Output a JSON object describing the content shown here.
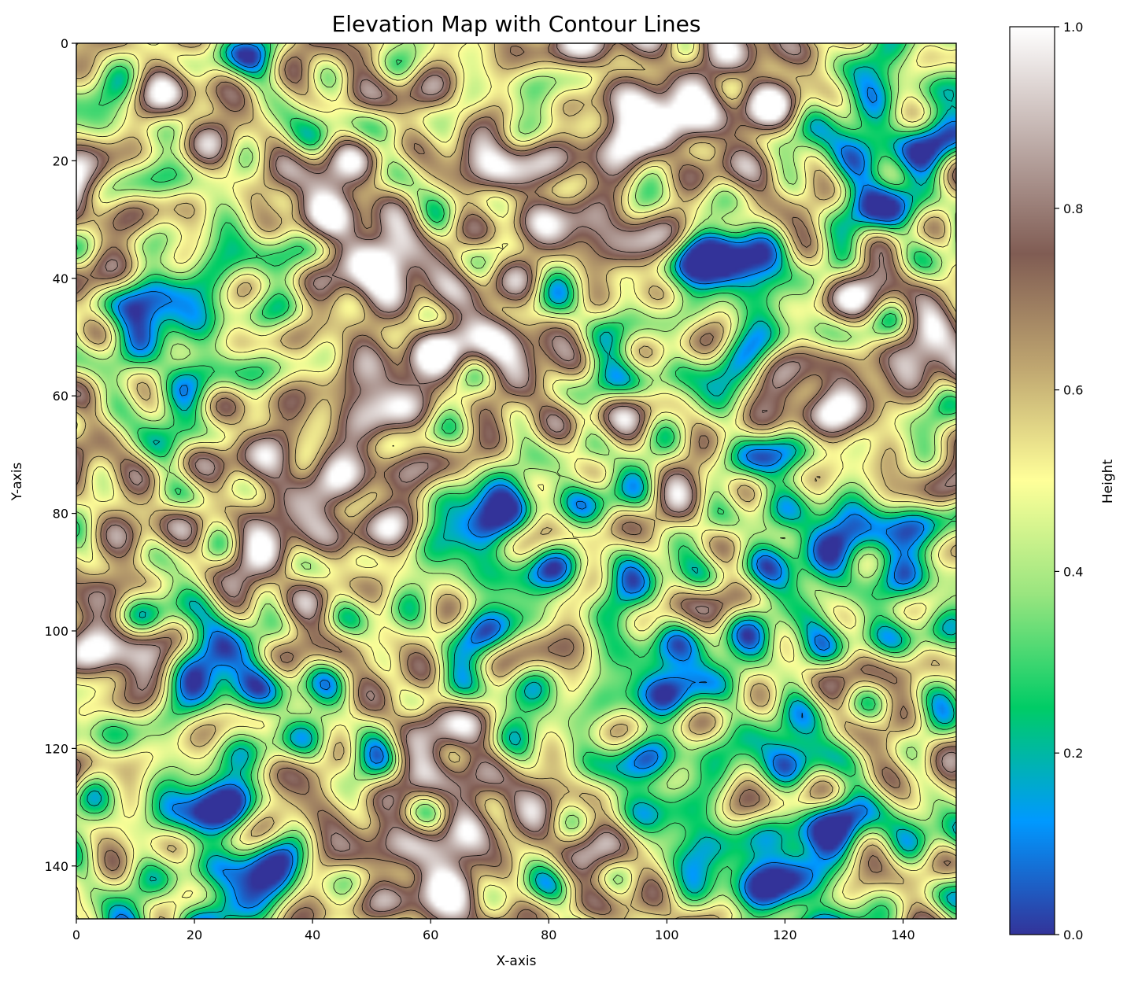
{
  "chart_data": {
    "type": "heatmap",
    "title": "Elevation Map with Contour Lines",
    "xlabel": "X-axis",
    "ylabel": "Y-axis",
    "grid": false,
    "xlim": [
      0,
      149
    ],
    "ylim": [
      149,
      0
    ],
    "x_ticks": [
      0,
      20,
      40,
      60,
      80,
      100,
      120,
      140
    ],
    "y_ticks": [
      0,
      20,
      40,
      60,
      80,
      100,
      120,
      140
    ],
    "colorbar": {
      "label": "Height",
      "range": [
        0,
        1
      ],
      "ticks": [
        0.0,
        0.2,
        0.4,
        0.6,
        0.8,
        1.0
      ],
      "tick_labels": [
        "0.0",
        "0.2",
        "0.4",
        "0.6",
        "0.8",
        "1.0"
      ],
      "colormap": "terrain",
      "stops": [
        "#333399",
        "#0099ff",
        "#00cc66",
        "#99e57f",
        "#ffff99",
        "#bfa670",
        "#805c53",
        "#bfaeaa",
        "#ffffff"
      ]
    },
    "contour_levels": [
      0.1,
      0.2,
      0.3,
      0.4,
      0.5,
      0.6,
      0.7,
      0.8
    ],
    "contour_color": "#000000",
    "grid_size": [
      150,
      150
    ],
    "features": [
      {
        "type": "low",
        "x": 18,
        "y": 44,
        "height": 0.14
      },
      {
        "type": "low",
        "x": 110,
        "y": 40,
        "height": 0.16
      },
      {
        "type": "low",
        "x": 141,
        "y": 16,
        "height": 0.14
      },
      {
        "type": "low",
        "x": 70,
        "y": 84,
        "height": 0.17
      },
      {
        "type": "low",
        "x": 130,
        "y": 86,
        "height": 0.15
      },
      {
        "type": "low",
        "x": 122,
        "y": 140,
        "height": 0.12
      },
      {
        "type": "low",
        "x": 24,
        "y": 140,
        "height": 0.22
      },
      {
        "type": "low",
        "x": 24,
        "y": 108,
        "height": 0.24
      },
      {
        "type": "low",
        "x": 100,
        "y": 112,
        "height": 0.22
      },
      {
        "type": "high",
        "x": 108,
        "y": 8,
        "height": 0.9
      },
      {
        "type": "high",
        "x": 88,
        "y": 24,
        "height": 0.8
      },
      {
        "type": "high",
        "x": 47,
        "y": 32,
        "height": 0.8
      },
      {
        "type": "high",
        "x": 62,
        "y": 55,
        "height": 0.82
      },
      {
        "type": "high",
        "x": 41,
        "y": 79,
        "height": 0.88
      },
      {
        "type": "high",
        "x": 135,
        "y": 55,
        "height": 0.82
      },
      {
        "type": "high",
        "x": 62,
        "y": 136,
        "height": 0.86
      },
      {
        "type": "high",
        "x": 2,
        "y": 101,
        "height": 0.76
      },
      {
        "type": "high",
        "x": 4,
        "y": 30,
        "height": 0.74
      }
    ]
  }
}
